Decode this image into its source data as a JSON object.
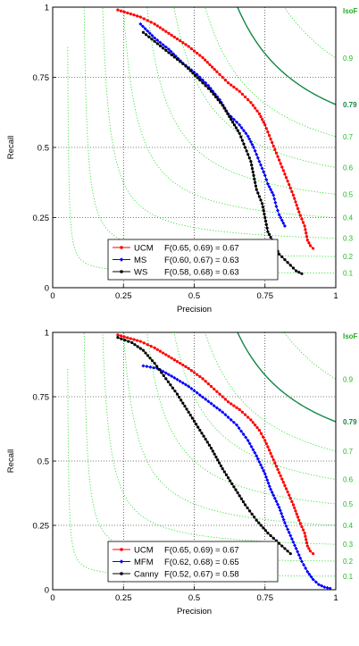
{
  "chart_data": [
    {
      "type": "line",
      "xlabel": "Precision",
      "ylabel": "Recall",
      "xlim": [
        0,
        1
      ],
      "ylim": [
        0,
        1
      ],
      "xticks": [
        "0",
        "0.25",
        "0.5",
        "0.75",
        "1"
      ],
      "yticks": [
        "0",
        "0.25",
        "0.5",
        "0.75",
        "1"
      ],
      "grid": true,
      "legend_position": "bottom-center",
      "isoF_title": "IsoF",
      "isoF_levels": [
        0.1,
        0.2,
        0.3,
        0.4,
        0.5,
        0.6,
        0.7,
        0.79,
        0.9
      ],
      "isoF_labels": [
        "0.1",
        "0.2",
        "0.3",
        "0.4",
        "0.5",
        "0.6",
        "0.7",
        "0.79",
        "0.9"
      ],
      "isoF_highlight": 0.79,
      "colors": {
        "isoF": "#22dd22",
        "isoF_highlight": "#118844",
        "grid": "#000000"
      },
      "series": [
        {
          "name": "UCM",
          "legend_text": "F(0.65, 0.69) = 0.67",
          "color": "#ff0000",
          "marker": "dot",
          "points": [
            [
              0.23,
              0.99
            ],
            [
              0.31,
              0.965
            ],
            [
              0.36,
              0.94
            ],
            [
              0.42,
              0.9
            ],
            [
              0.48,
              0.86
            ],
            [
              0.53,
              0.82
            ],
            [
              0.58,
              0.77
            ],
            [
              0.62,
              0.73
            ],
            [
              0.66,
              0.7
            ],
            [
              0.7,
              0.66
            ],
            [
              0.73,
              0.62
            ],
            [
              0.75,
              0.58
            ],
            [
              0.77,
              0.53
            ],
            [
              0.79,
              0.48
            ],
            [
              0.81,
              0.43
            ],
            [
              0.83,
              0.38
            ],
            [
              0.85,
              0.33
            ],
            [
              0.87,
              0.27
            ],
            [
              0.89,
              0.22
            ],
            [
              0.9,
              0.17
            ],
            [
              0.91,
              0.15
            ],
            [
              0.92,
              0.14
            ]
          ]
        },
        {
          "name": "MS",
          "legend_text": "F(0.60, 0.67) = 0.63",
          "color": "#0000ff",
          "marker": "diamond",
          "points": [
            [
              0.31,
              0.94
            ],
            [
              0.36,
              0.89
            ],
            [
              0.41,
              0.85
            ],
            [
              0.46,
              0.8
            ],
            [
              0.51,
              0.76
            ],
            [
              0.55,
              0.72
            ],
            [
              0.59,
              0.67
            ],
            [
              0.62,
              0.62
            ],
            [
              0.66,
              0.58
            ],
            [
              0.69,
              0.54
            ],
            [
              0.71,
              0.5
            ],
            [
              0.73,
              0.45
            ],
            [
              0.75,
              0.4
            ],
            [
              0.76,
              0.37
            ],
            [
              0.78,
              0.33
            ],
            [
              0.79,
              0.29
            ],
            [
              0.8,
              0.26
            ],
            [
              0.81,
              0.24
            ],
            [
              0.82,
              0.22
            ]
          ]
        },
        {
          "name": "WS",
          "legend_text": "F(0.58, 0.68) = 0.63",
          "color": "#000000",
          "marker": "dot",
          "points": [
            [
              0.32,
              0.91
            ],
            [
              0.37,
              0.87
            ],
            [
              0.42,
              0.83
            ],
            [
              0.47,
              0.79
            ],
            [
              0.52,
              0.74
            ],
            [
              0.56,
              0.7
            ],
            [
              0.6,
              0.65
            ],
            [
              0.63,
              0.6
            ],
            [
              0.66,
              0.55
            ],
            [
              0.68,
              0.5
            ],
            [
              0.7,
              0.45
            ],
            [
              0.71,
              0.4
            ],
            [
              0.72,
              0.35
            ],
            [
              0.74,
              0.3
            ],
            [
              0.75,
              0.25
            ],
            [
              0.76,
              0.2
            ],
            [
              0.78,
              0.16
            ],
            [
              0.8,
              0.12
            ],
            [
              0.82,
              0.1
            ],
            [
              0.84,
              0.08
            ],
            [
              0.86,
              0.06
            ],
            [
              0.88,
              0.05
            ]
          ]
        }
      ]
    },
    {
      "type": "line",
      "xlabel": "Precision",
      "ylabel": "Recall",
      "xlim": [
        0,
        1
      ],
      "ylim": [
        0,
        1
      ],
      "xticks": [
        "0",
        "0.25",
        "0.5",
        "0.75",
        "1"
      ],
      "yticks": [
        "0",
        "0.25",
        "0.5",
        "0.75",
        "1"
      ],
      "grid": true,
      "legend_position": "bottom-center",
      "isoF_title": "IsoF",
      "isoF_levels": [
        0.1,
        0.2,
        0.3,
        0.4,
        0.5,
        0.6,
        0.7,
        0.79,
        0.9
      ],
      "isoF_labels": [
        "0.1",
        "0.2",
        "0.3",
        "0.4",
        "0.5",
        "0.6",
        "0.7",
        "0.79",
        "0.9"
      ],
      "isoF_highlight": 0.79,
      "colors": {
        "isoF": "#22dd22",
        "isoF_highlight": "#118844",
        "grid": "#000000"
      },
      "series": [
        {
          "name": "UCM",
          "legend_text": "F(0.65, 0.69) = 0.67",
          "color": "#ff0000",
          "marker": "dot",
          "points": [
            [
              0.23,
              0.99
            ],
            [
              0.31,
              0.965
            ],
            [
              0.36,
              0.94
            ],
            [
              0.42,
              0.9
            ],
            [
              0.48,
              0.86
            ],
            [
              0.53,
              0.82
            ],
            [
              0.58,
              0.77
            ],
            [
              0.62,
              0.73
            ],
            [
              0.66,
              0.7
            ],
            [
              0.7,
              0.66
            ],
            [
              0.73,
              0.62
            ],
            [
              0.75,
              0.58
            ],
            [
              0.77,
              0.53
            ],
            [
              0.79,
              0.48
            ],
            [
              0.81,
              0.43
            ],
            [
              0.83,
              0.38
            ],
            [
              0.85,
              0.33
            ],
            [
              0.87,
              0.27
            ],
            [
              0.89,
              0.22
            ],
            [
              0.9,
              0.17
            ],
            [
              0.91,
              0.15
            ],
            [
              0.92,
              0.14
            ]
          ]
        },
        {
          "name": "MFM",
          "legend_text": "F(0.62, 0.68) = 0.65",
          "color": "#0000ff",
          "marker": "diamond",
          "points": [
            [
              0.32,
              0.87
            ],
            [
              0.37,
              0.86
            ],
            [
              0.42,
              0.83
            ],
            [
              0.48,
              0.79
            ],
            [
              0.54,
              0.74
            ],
            [
              0.6,
              0.69
            ],
            [
              0.65,
              0.64
            ],
            [
              0.69,
              0.58
            ],
            [
              0.72,
              0.52
            ],
            [
              0.75,
              0.45
            ],
            [
              0.77,
              0.39
            ],
            [
              0.8,
              0.32
            ],
            [
              0.82,
              0.26
            ],
            [
              0.84,
              0.21
            ],
            [
              0.86,
              0.16
            ],
            [
              0.88,
              0.11
            ],
            [
              0.9,
              0.07
            ],
            [
              0.92,
              0.04
            ],
            [
              0.94,
              0.02
            ],
            [
              0.96,
              0.01
            ],
            [
              0.98,
              0.005
            ]
          ]
        },
        {
          "name": "Canny",
          "legend_text": "F(0.52, 0.67) = 0.58",
          "color": "#000000",
          "marker": "dot",
          "points": [
            [
              0.23,
              0.98
            ],
            [
              0.28,
              0.96
            ],
            [
              0.32,
              0.93
            ],
            [
              0.36,
              0.88
            ],
            [
              0.4,
              0.82
            ],
            [
              0.44,
              0.76
            ],
            [
              0.48,
              0.69
            ],
            [
              0.52,
              0.62
            ],
            [
              0.56,
              0.55
            ],
            [
              0.6,
              0.47
            ],
            [
              0.64,
              0.4
            ],
            [
              0.68,
              0.33
            ],
            [
              0.72,
              0.27
            ],
            [
              0.76,
              0.22
            ],
            [
              0.8,
              0.18
            ],
            [
              0.84,
              0.14
            ]
          ]
        }
      ]
    }
  ]
}
